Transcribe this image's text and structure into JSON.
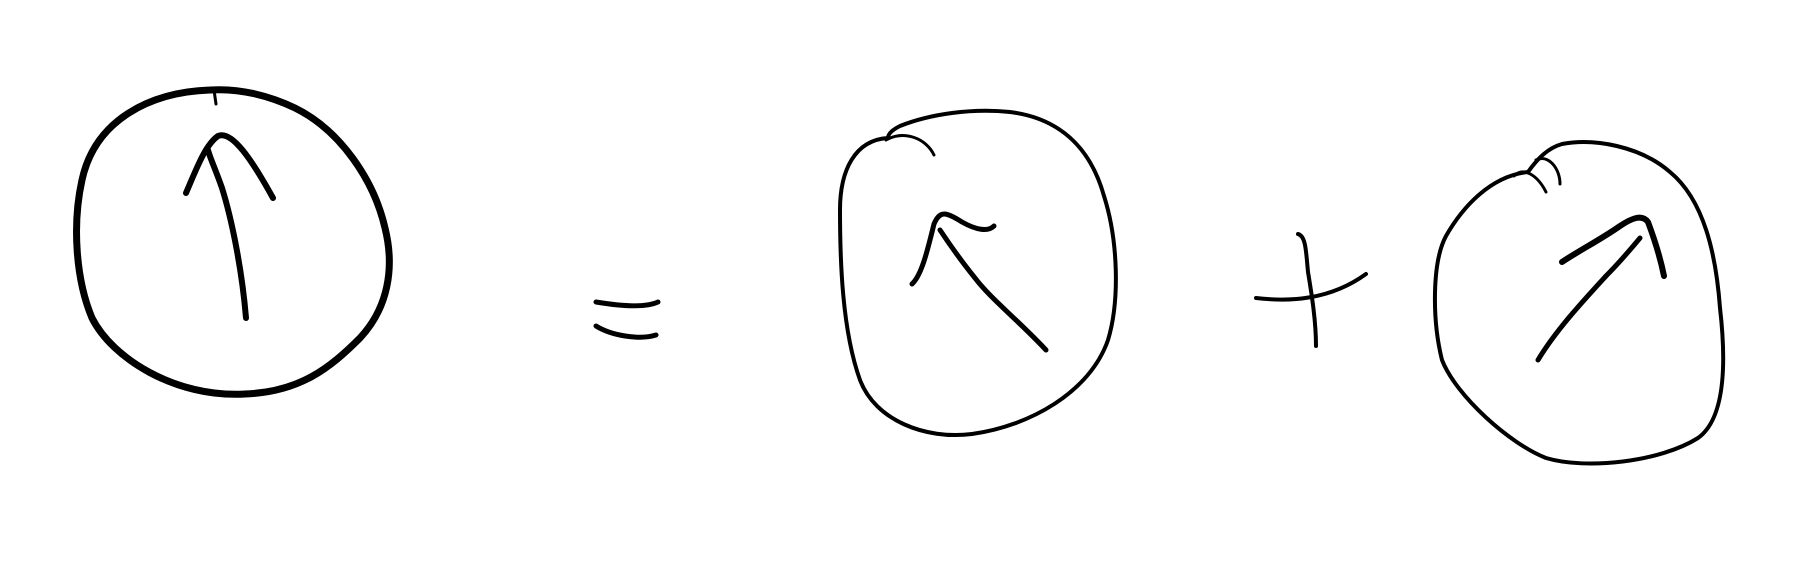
{
  "ink_color": "#000000",
  "background_color": "#ffffff",
  "equation": {
    "term_left": {
      "shape": "circle",
      "icon": "arrow-up-icon"
    },
    "operator_1": "equals",
    "term_middle": {
      "shape": "circle",
      "icon": "arrow-up-left-icon"
    },
    "operator_2": "plus",
    "term_right": {
      "shape": "circle",
      "icon": "arrow-up-right-icon"
    }
  }
}
